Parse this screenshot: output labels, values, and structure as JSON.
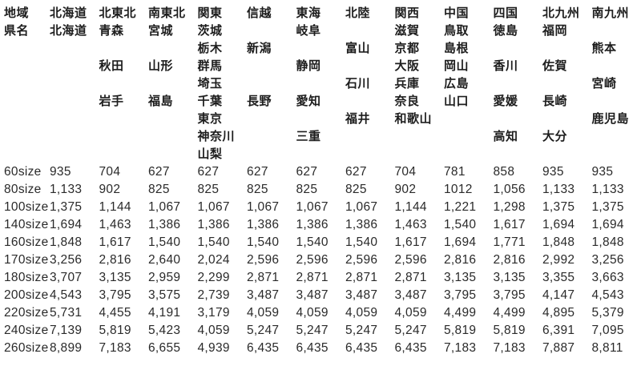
{
  "colors": {
    "background": "#ffffff",
    "header_text": "#1d1d1d",
    "number_text": "#2a2a2a"
  },
  "table": {
    "region_header_label": "地域",
    "pref_header_label": "県名",
    "columns": [
      {
        "region": "北海道",
        "prefs": [
          "北海道",
          "",
          "",
          "",
          "",
          "",
          "",
          ""
        ]
      },
      {
        "region": "北東北",
        "prefs": [
          "青森",
          "",
          "秋田",
          "",
          "岩手",
          "",
          "",
          ""
        ]
      },
      {
        "region": "南東北",
        "prefs": [
          "宮城",
          "",
          "山形",
          "",
          "福島",
          "",
          "",
          ""
        ]
      },
      {
        "region": "関東",
        "prefs": [
          "茨城",
          "栃木",
          "群馬",
          "埼玉",
          "千葉",
          "東京",
          "神奈川",
          "山梨"
        ]
      },
      {
        "region": "信越",
        "prefs": [
          "",
          "新潟",
          "",
          "",
          "長野",
          "",
          "",
          ""
        ]
      },
      {
        "region": "東海",
        "prefs": [
          "岐阜",
          "",
          "静岡",
          "",
          "愛知",
          "",
          "三重",
          ""
        ]
      },
      {
        "region": "北陸",
        "prefs": [
          "",
          "富山",
          "",
          "石川",
          "",
          "福井",
          "",
          ""
        ]
      },
      {
        "region": "関西",
        "prefs": [
          "滋賀",
          "京都",
          "大阪",
          "兵庫",
          "奈良",
          "和歌山",
          "",
          ""
        ]
      },
      {
        "region": "中国",
        "prefs": [
          "鳥取",
          "島根",
          "岡山",
          "広島",
          "山口",
          "",
          "",
          ""
        ]
      },
      {
        "region": "四国",
        "prefs": [
          "徳島",
          "",
          "香川",
          "",
          "愛媛",
          "",
          "高知",
          ""
        ]
      },
      {
        "region": "北九州",
        "prefs": [
          "福岡",
          "",
          "佐賀",
          "",
          "長崎",
          "",
          "大分",
          ""
        ]
      },
      {
        "region": "南九州",
        "prefs": [
          "",
          "熊本",
          "",
          "宮崎",
          "",
          "鹿児島",
          "",
          ""
        ]
      }
    ],
    "rows": [
      {
        "size": "60size",
        "values": [
          "935",
          "704",
          "627",
          "627",
          "627",
          "627",
          "627",
          "704",
          "781",
          "858",
          "935",
          "935"
        ]
      },
      {
        "size": "80size",
        "values": [
          "1,133",
          "902",
          "825",
          "825",
          "825",
          "825",
          "825",
          "902",
          "1012",
          "1,056",
          "1,133",
          "1,133"
        ]
      },
      {
        "size": "100size",
        "values": [
          "1,375",
          "1,144",
          "1,067",
          "1,067",
          "1,067",
          "1,067",
          "1,067",
          "1,144",
          "1,221",
          "1,298",
          "1,375",
          "1,375"
        ]
      },
      {
        "size": "140size",
        "values": [
          "1,694",
          "1,463",
          "1,386",
          "1,386",
          "1,386",
          "1,386",
          "1,386",
          "1,463",
          "1,540",
          "1,617",
          "1,694",
          "1,694"
        ]
      },
      {
        "size": "160size",
        "values": [
          "1,848",
          "1,617",
          "1,540",
          "1,540",
          "1,540",
          "1,540",
          "1,540",
          "1,617",
          "1,694",
          "1,771",
          "1,848",
          "1,848"
        ]
      },
      {
        "size": "170size",
        "values": [
          "3,256",
          "2,816",
          "2,640",
          "2,024",
          "2,596",
          "2,596",
          "2,596",
          "2,596",
          "2,816",
          "2,816",
          "2,992",
          "3,256"
        ]
      },
      {
        "size": "180size",
        "values": [
          "3,707",
          "3,135",
          "2,959",
          "2,299",
          "2,871",
          "2,871",
          "2,871",
          "2,871",
          "3,135",
          "3,135",
          "3,355",
          "3,663"
        ]
      },
      {
        "size": "200size",
        "values": [
          "4,543",
          "3,795",
          "3,575",
          "2,739",
          "3,487",
          "3,487",
          "3,487",
          "3,487",
          "3,795",
          "3,795",
          "4,147",
          "4,543"
        ]
      },
      {
        "size": "220size",
        "values": [
          "5,731",
          "4,455",
          "4,191",
          "3,179",
          "4,059",
          "4,059",
          "4,059",
          "4,059",
          "4,499",
          "4,499",
          "4,895",
          "5,379"
        ]
      },
      {
        "size": "240size",
        "values": [
          "7,139",
          "5,819",
          "5,423",
          "4,059",
          "5,247",
          "5,247",
          "5,247",
          "5,247",
          "5,819",
          "5,819",
          "6,391",
          "7,095"
        ]
      },
      {
        "size": "260size",
        "values": [
          "8,899",
          "7,183",
          "6,655",
          "4,939",
          "6,435",
          "6,435",
          "6,435",
          "6,435",
          "7,183",
          "7,183",
          "7,887",
          "8,811"
        ]
      }
    ]
  }
}
